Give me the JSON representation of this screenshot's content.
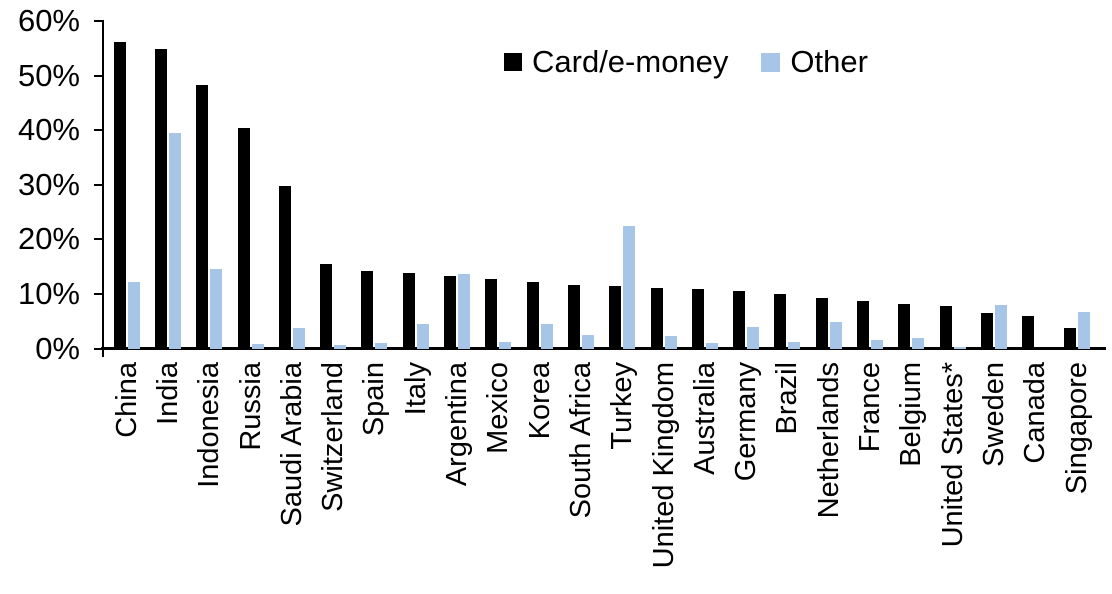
{
  "chart_data": {
    "type": "bar",
    "title": "",
    "xlabel": "",
    "ylabel": "",
    "categories": [
      "China",
      "India",
      "Indonesia",
      "Russia",
      "Saudi Arabia",
      "Switzerland",
      "Spain",
      "Italy",
      "Argentina",
      "Mexico",
      "Korea",
      "South Africa",
      "Turkey",
      "United Kingdom",
      "Australia",
      "Germany",
      "Brazil",
      "Netherlands",
      "France",
      "Belgium",
      "United States*",
      "Sweden",
      "Canada",
      "Singapore"
    ],
    "series": [
      {
        "name": "Card/e-money",
        "color": "#000000",
        "values": [
          56.2,
          55.0,
          48.4,
          40.4,
          29.8,
          15.6,
          14.3,
          14.0,
          13.4,
          12.9,
          12.2,
          11.7,
          11.6,
          11.1,
          10.9,
          10.7,
          10.0,
          9.3,
          8.8,
          8.2,
          7.9,
          6.6,
          6.0,
          3.9
        ]
      },
      {
        "name": "Other",
        "color": "#a7c6e7",
        "values": [
          12.3,
          39.6,
          14.6,
          1.0,
          3.9,
          0.8,
          1.1,
          4.6,
          13.7,
          1.3,
          4.6,
          2.5,
          22.5,
          2.4,
          1.1,
          4.0,
          1.3,
          4.9,
          1.6,
          2.1,
          0.3,
          8.1,
          0.0,
          6.7
        ]
      }
    ],
    "y_tick_labels": [
      "0%",
      "10%",
      "20%",
      "30%",
      "40%",
      "50%",
      "60%"
    ],
    "ylim": [
      0,
      60
    ],
    "grid": false,
    "legend_position": "top-center"
  }
}
